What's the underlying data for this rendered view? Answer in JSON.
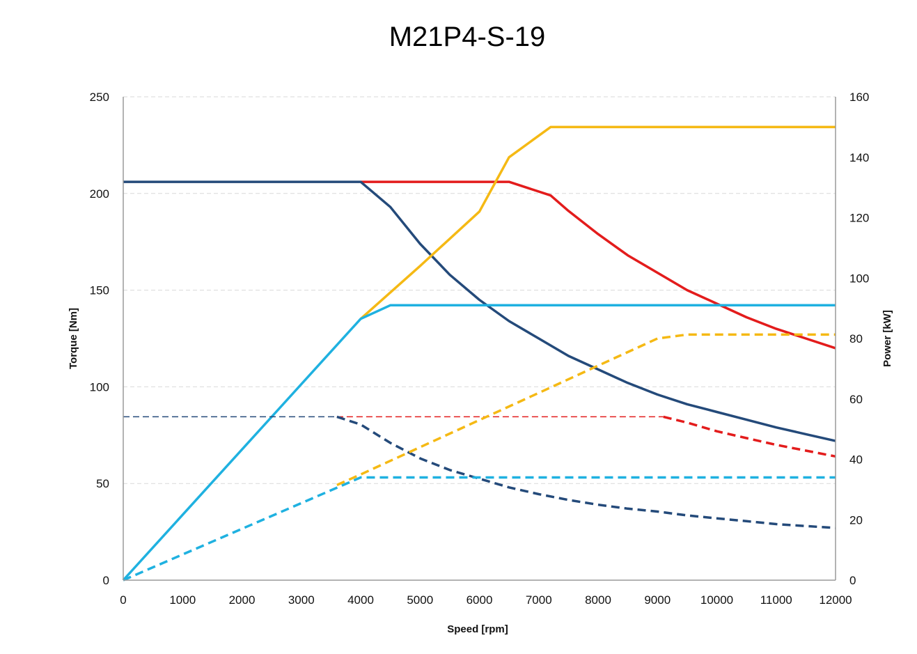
{
  "chart_data": {
    "type": "line",
    "title": "M21P4-S-19",
    "xlabel": "Speed [rpm]",
    "ylabel_left": "Torque [Nm]",
    "ylabel_right": "Power [kW]",
    "xlim": [
      0,
      12000
    ],
    "ylim_left": [
      0,
      250
    ],
    "ylim_right": [
      0,
      160
    ],
    "x_ticks": [
      0,
      1000,
      2000,
      3000,
      4000,
      5000,
      6000,
      7000,
      8000,
      9000,
      10000,
      11000,
      12000
    ],
    "y_left_ticks": [
      0,
      50,
      100,
      150,
      200,
      250
    ],
    "y_right_ticks": [
      0,
      20,
      40,
      60,
      80,
      100,
      120,
      140,
      160
    ],
    "grid": "horizontal dashed",
    "legend": "none",
    "series": [
      {
        "axis": "left",
        "color": "#e31c1c",
        "width": 3.5,
        "dash": "",
        "points": [
          [
            4000,
            206
          ],
          [
            6500,
            206
          ],
          [
            7200,
            199
          ],
          [
            7500,
            191
          ],
          [
            8000,
            179
          ],
          [
            8500,
            168
          ],
          [
            9000,
            159
          ],
          [
            9500,
            150
          ],
          [
            10000,
            143
          ],
          [
            10500,
            136
          ],
          [
            11000,
            130
          ],
          [
            11500,
            125
          ],
          [
            12000,
            120
          ]
        ]
      },
      {
        "axis": "left",
        "color": "#244a7a",
        "width": 3.5,
        "dash": "",
        "points": [
          [
            0,
            206
          ],
          [
            4000,
            206
          ],
          [
            4500,
            193
          ],
          [
            5000,
            174
          ],
          [
            5500,
            158
          ],
          [
            6000,
            145
          ],
          [
            6500,
            134
          ],
          [
            7000,
            125
          ],
          [
            7500,
            116
          ],
          [
            8000,
            109
          ],
          [
            8500,
            102
          ],
          [
            9000,
            96
          ],
          [
            9500,
            91
          ],
          [
            10000,
            87
          ],
          [
            10500,
            83
          ],
          [
            11000,
            79
          ],
          [
            11500,
            75.5
          ],
          [
            12000,
            72
          ]
        ]
      },
      {
        "axis": "right",
        "color": "#f5b914",
        "width": 3.5,
        "dash": "",
        "points": [
          [
            4000,
            86.5
          ],
          [
            5000,
            104
          ],
          [
            6000,
            122
          ],
          [
            6500,
            140
          ],
          [
            7200,
            150
          ],
          [
            12000,
            150
          ]
        ]
      },
      {
        "axis": "right",
        "color": "#1fb1e0",
        "width": 3.5,
        "dash": "",
        "points": [
          [
            0,
            0
          ],
          [
            4000,
            86.5
          ],
          [
            4500,
            91
          ],
          [
            12000,
            91
          ]
        ]
      },
      {
        "axis": "left",
        "color": "#e31c1c",
        "width": 1.5,
        "dash": "9 5",
        "points": [
          [
            3600,
            84.5
          ],
          [
            9100,
            84.5
          ]
        ]
      },
      {
        "axis": "left",
        "color": "#e31c1c",
        "width": 3.5,
        "dash": "12 7",
        "points": [
          [
            9100,
            84.5
          ],
          [
            9500,
            81.5
          ],
          [
            10000,
            77
          ],
          [
            10500,
            73.5
          ],
          [
            11000,
            70
          ],
          [
            11500,
            67
          ],
          [
            12000,
            64
          ]
        ]
      },
      {
        "axis": "left",
        "color": "#244a7a",
        "width": 1.5,
        "dash": "9 5",
        "points": [
          [
            0,
            84.5
          ],
          [
            3600,
            84.5
          ]
        ]
      },
      {
        "axis": "left",
        "color": "#244a7a",
        "width": 3.5,
        "dash": "12 7",
        "points": [
          [
            3600,
            84.5
          ],
          [
            4000,
            80.5
          ],
          [
            4500,
            71
          ],
          [
            5000,
            63
          ],
          [
            5500,
            57
          ],
          [
            6000,
            52.5
          ],
          [
            6500,
            48
          ],
          [
            7000,
            44.5
          ],
          [
            7500,
            41.5
          ],
          [
            8000,
            39
          ],
          [
            8500,
            37
          ],
          [
            9000,
            35.5
          ],
          [
            9500,
            33.5
          ],
          [
            10000,
            32
          ],
          [
            10500,
            30.5
          ],
          [
            11000,
            29
          ],
          [
            11500,
            28
          ],
          [
            12000,
            27
          ]
        ]
      },
      {
        "axis": "right",
        "color": "#f5b914",
        "width": 3.5,
        "dash": "12 7",
        "points": [
          [
            3600,
            31.5
          ],
          [
            4000,
            35
          ],
          [
            5000,
            44
          ],
          [
            6000,
            53
          ],
          [
            7000,
            62
          ],
          [
            8000,
            71
          ],
          [
            9000,
            80
          ],
          [
            9500,
            81.3
          ],
          [
            12000,
            81.3
          ]
        ]
      },
      {
        "axis": "right",
        "color": "#1fb1e0",
        "width": 3.5,
        "dash": "12 7",
        "points": [
          [
            0,
            0
          ],
          [
            4000,
            34
          ],
          [
            12000,
            34
          ]
        ]
      }
    ]
  }
}
